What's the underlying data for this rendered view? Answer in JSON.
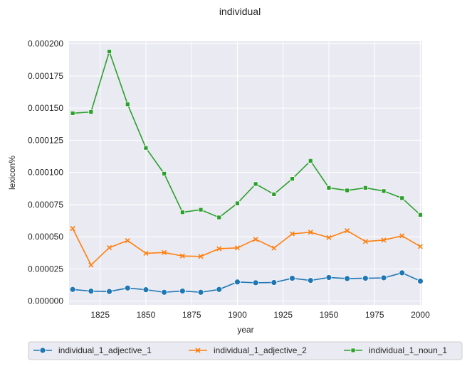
{
  "chart_data": {
    "type": "line",
    "title": "individual",
    "xlabel": "year",
    "ylabel": "lexicon%",
    "xlim": [
      1808,
      2001
    ],
    "ylim": [
      -3e-06,
      0.000202
    ],
    "grid": true,
    "legend_placement": "bottom",
    "x_ticks": [
      1825,
      1850,
      1875,
      1900,
      1925,
      1950,
      1975,
      2000
    ],
    "x_tick_labels": [
      "1825",
      "1850",
      "1875",
      "1900",
      "1925",
      "1950",
      "1975",
      "2000"
    ],
    "y_ticks": [
      0,
      2.5e-05,
      5e-05,
      7.5e-05,
      0.0001,
      0.000125,
      0.00015,
      0.000175,
      0.0002
    ],
    "y_tick_labels": [
      "0.000000",
      "0.000025",
      "0.000050",
      "0.000075",
      "0.000100",
      "0.000125",
      "0.000150",
      "0.000175",
      "0.000200"
    ],
    "x": [
      1810,
      1820,
      1830,
      1840,
      1850,
      1860,
      1870,
      1880,
      1890,
      1900,
      1910,
      1920,
      1930,
      1940,
      1950,
      1960,
      1970,
      1980,
      1990,
      2000
    ],
    "series": [
      {
        "name": "individual_1_adjective_1",
        "color": "#1f77b4",
        "marker": "circle",
        "values": [
          9e-06,
          7.7e-06,
          7.4e-06,
          1.01e-05,
          8.8e-06,
          6.8e-06,
          7.8e-06,
          6.8e-06,
          9e-06,
          1.48e-05,
          1.42e-05,
          1.44e-05,
          1.77e-05,
          1.6e-05,
          1.83e-05,
          1.75e-05,
          1.77e-05,
          1.8e-05,
          2.19e-05,
          1.55e-05
        ]
      },
      {
        "name": "individual_1_adjective_2",
        "color": "#ff7f0e",
        "marker": "x",
        "values": [
          5.64e-05,
          2.8e-05,
          4.15e-05,
          4.7e-05,
          3.71e-05,
          3.77e-05,
          3.5e-05,
          3.47e-05,
          4.07e-05,
          4.13e-05,
          4.8e-05,
          4.12e-05,
          5.22e-05,
          5.35e-05,
          4.93e-05,
          5.47e-05,
          4.63e-05,
          4.74e-05,
          5.07e-05,
          4.24e-05
        ]
      },
      {
        "name": "individual_1_noun_1",
        "color": "#2ca02c",
        "marker": "square",
        "values": [
          0.000146,
          0.000147,
          0.000194,
          0.000153,
          0.000119,
          9.9e-05,
          6.9e-05,
          7.1e-05,
          6.5e-05,
          7.6e-05,
          9.1e-05,
          8.3e-05,
          9.5e-05,
          0.000109,
          8.8e-05,
          8.6e-05,
          8.8e-05,
          8.55e-05,
          8e-05,
          6.7e-05
        ]
      }
    ]
  }
}
